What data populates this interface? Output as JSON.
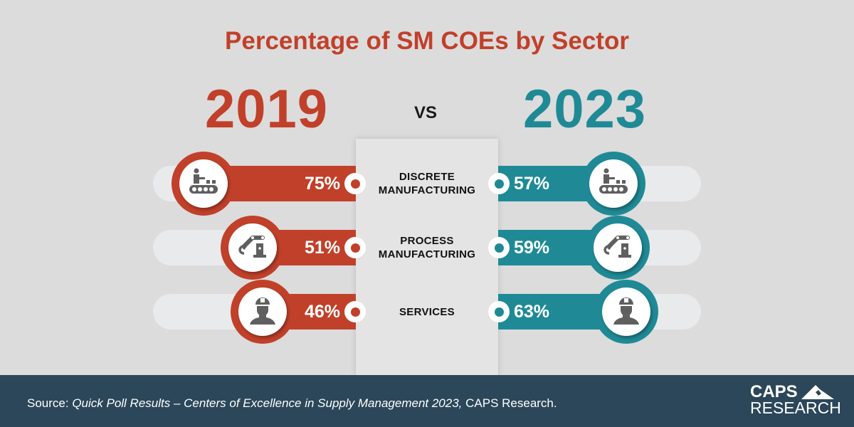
{
  "title": "Percentage of SM COEs by Sector",
  "year_left": "2019",
  "vs": "VS",
  "year_right": "2023",
  "colors": {
    "left": "#c1402a",
    "right": "#1f8a96",
    "footer": "#2b4759"
  },
  "chart_data": {
    "type": "bar",
    "title": "Percentage of SM COEs by Sector",
    "categories": [
      "DISCRETE MANUFACTURING",
      "PROCESS MANUFACTURING",
      "SERVICES"
    ],
    "category_lines": [
      [
        "DISCRETE",
        "MANUFACTURING"
      ],
      [
        "PROCESS",
        "MANUFACTURING"
      ],
      [
        "SERVICES"
      ]
    ],
    "icons": [
      "conveyor-worker-icon",
      "robot-arm-icon",
      "hardhat-worker-icon"
    ],
    "series": [
      {
        "name": "2019",
        "values": [
          75,
          51,
          46
        ],
        "labels": [
          "75%",
          "51%",
          "46%"
        ]
      },
      {
        "name": "2023",
        "values": [
          57,
          59,
          63
        ],
        "labels": [
          "57%",
          "59%",
          "63%"
        ]
      }
    ],
    "ylim": [
      0,
      100
    ]
  },
  "footer": {
    "source_prefix": "Source: ",
    "source_title": "Quick Poll Results –  Centers of Excellence in Supply Management 2023,",
    "source_suffix": " CAPS Research.",
    "logo_line1": "CAPS",
    "logo_line2": "RESEARCH"
  }
}
